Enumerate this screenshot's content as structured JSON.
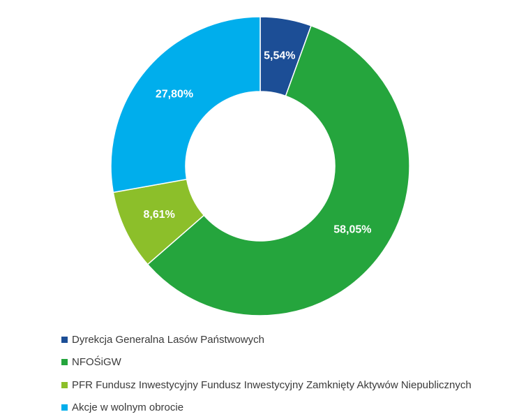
{
  "chart_data": {
    "type": "pie",
    "variant": "donut",
    "title": "",
    "legend_position": "bottom-left",
    "slices": [
      {
        "label": "Dyrekcja Generalna Lasów Państwowych",
        "value": 5.54,
        "value_label": "5,54%",
        "color": "#1c4e96"
      },
      {
        "label": "NFOŚiGW",
        "value": 58.05,
        "value_label": "58,05%",
        "color": "#25a53d"
      },
      {
        "label": "PFR Fundusz Inwestycyjny Fundusz Inwestycyjny Zamknięty Aktywów Niepublicznych",
        "value": 8.61,
        "value_label": "8,61%",
        "color": "#8cbf2a"
      },
      {
        "label": "Akcje w wolnym obrocie",
        "value": 27.8,
        "value_label": "27,80%",
        "color": "#00aeec"
      }
    ]
  }
}
